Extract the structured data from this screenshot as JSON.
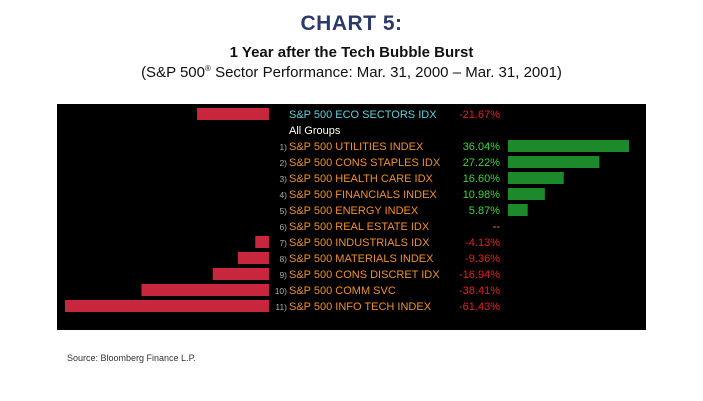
{
  "header": {
    "chart_label": "CHART 5:",
    "title": "1 Year after the Tech Bubble Burst",
    "subtitle_prefix": "(S&P 500",
    "subtitle_reg": "®",
    "subtitle_suffix": " Sector Performance: Mar. 31, 2000 – Mar. 31, 2001)"
  },
  "source": "Source: Bloomberg Finance L.P.",
  "colors": {
    "panel_bg": "#000000",
    "negative_bar": "#c8263c",
    "positive_bar": "#1c8a2a",
    "index_text": "#5fd0e0",
    "sector_text": "#f0902a",
    "group_text": "#ffffff",
    "number_text": "#aaaaaa",
    "negative_value": "#e02020",
    "positive_value": "#3fd43f",
    "neutral_value": "#f0902a"
  },
  "chart_data": {
    "type": "bar",
    "orientation": "horizontal",
    "title": "1 Year after the Tech Bubble Burst",
    "subtitle": "(S&P 500® Sector Performance: Mar. 31, 2000 – Mar. 31, 2001)",
    "unit": "%",
    "index": {
      "name": "S&P 500 ECO SECTORS IDX",
      "value": -21.67,
      "value_label": "-21.67%"
    },
    "group_label": "All Groups",
    "rows": [
      {
        "rank": "1)",
        "name": "S&P 500 UTILITIES INDEX",
        "value": 36.04,
        "value_label": "36.04%"
      },
      {
        "rank": "2)",
        "name": "S&P 500 CONS STAPLES IDX",
        "value": 27.22,
        "value_label": "27.22%"
      },
      {
        "rank": "3)",
        "name": "S&P 500 HEALTH CARE IDX",
        "value": 16.6,
        "value_label": "16.60%"
      },
      {
        "rank": "4)",
        "name": "S&P 500 FINANCIALS INDEX",
        "value": 10.98,
        "value_label": "10.98%"
      },
      {
        "rank": "5)",
        "name": "S&P 500 ENERGY INDEX",
        "value": 5.87,
        "value_label": "5.87%"
      },
      {
        "rank": "6)",
        "name": "S&P 500 REAL ESTATE IDX",
        "value": null,
        "value_label": "--"
      },
      {
        "rank": "7)",
        "name": "S&P 500 INDUSTRIALS IDX",
        "value": -4.13,
        "value_label": "-4.13%"
      },
      {
        "rank": "8)",
        "name": "S&P 500 MATERIALS INDEX",
        "value": -9.36,
        "value_label": "-9.36%"
      },
      {
        "rank": "9)",
        "name": "S&P 500 CONS DISCRET IDX",
        "value": -16.94,
        "value_label": "-16.94%"
      },
      {
        "rank": "10)",
        "name": "S&P 500 COMM SVC",
        "value": -38.41,
        "value_label": "-38.41%"
      },
      {
        "rank": "11)",
        "name": "S&P 500 INFO TECH INDEX",
        "value": -61.43,
        "value_label": "-61.43%"
      }
    ],
    "xlim_negative": [
      -61.43,
      0
    ],
    "xlim_positive": [
      0,
      36.04
    ]
  }
}
